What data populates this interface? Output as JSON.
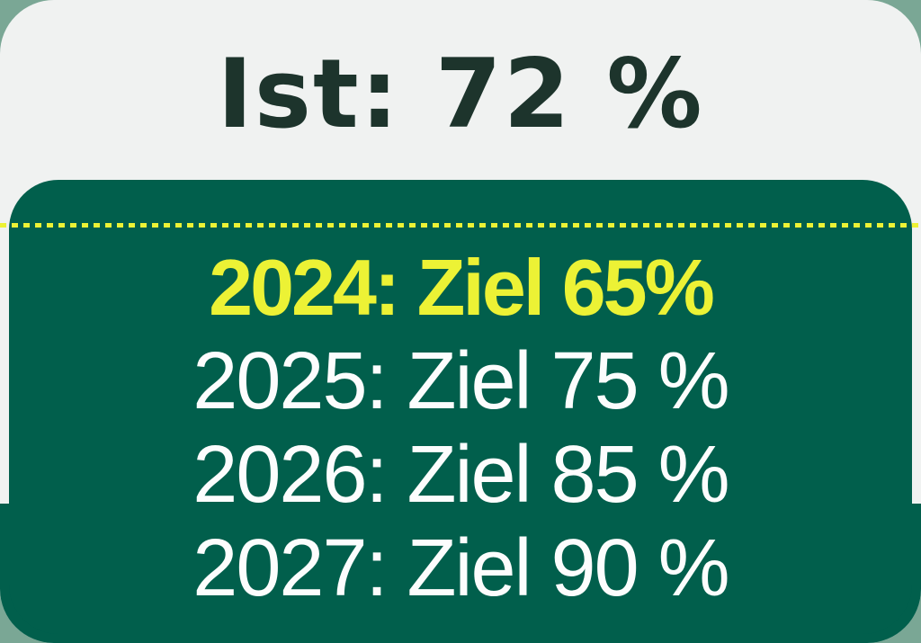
{
  "colors": {
    "bg-outer": "#7aa795",
    "card-bg": "#f0f2f1",
    "panel-green": "#015f4c",
    "text-dark": "#1d342c",
    "accent-yellow": "#ecf235",
    "text-white": "#fcfdfd"
  },
  "header": {
    "actual_label": "Ist: 72 %"
  },
  "targets": {
    "rows": [
      {
        "year": "2024",
        "target_percent": 65,
        "label": "2024: Ziel 65%",
        "highlight": true
      },
      {
        "year": "2025",
        "target_percent": 75,
        "label": "2025: Ziel 75 %",
        "highlight": false
      },
      {
        "year": "2026",
        "target_percent": 85,
        "label": "2026: Ziel 85 %",
        "highlight": false
      },
      {
        "year": "2027",
        "target_percent": 90,
        "label": "2027: Ziel 90 %",
        "highlight": false
      }
    ]
  },
  "chart_data": {
    "type": "table",
    "title": "Ist: 72 %",
    "actual_percent": 72,
    "categories": [
      "2024",
      "2025",
      "2026",
      "2027"
    ],
    "values": [
      65,
      75,
      85,
      90
    ],
    "series_name": "Ziel (%)",
    "highlighted_category": "2024",
    "ylabel": "Ziel %",
    "ylim": [
      0,
      100
    ]
  }
}
